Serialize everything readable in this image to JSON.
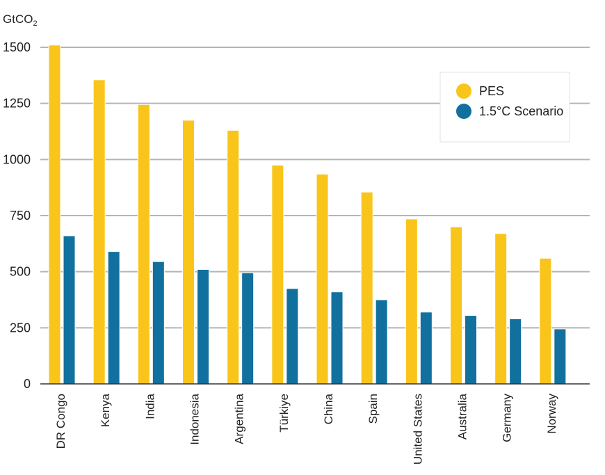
{
  "chart_data": {
    "type": "bar",
    "ylabel_main": "GtCO",
    "ylabel_sub": "2",
    "ylim": [
      0,
      1500
    ],
    "yticks": [
      0,
      250,
      500,
      750,
      1000,
      1250,
      1500
    ],
    "grid": true,
    "legend_position": "top-right",
    "categories": [
      "DR Congo",
      "Kenya",
      "India",
      "Indonesia",
      "Argentina",
      "Türkiye",
      "China",
      "Spain",
      "United States",
      "Australia",
      "Germany",
      "Norway"
    ],
    "series": [
      {
        "name": "PES",
        "color": "#F9C51B",
        "values": [
          1510,
          1355,
          1245,
          1175,
          1130,
          975,
          935,
          855,
          735,
          700,
          670,
          560
        ]
      },
      {
        "name": "1.5°C Scenario",
        "color": "#11709E",
        "values": [
          660,
          590,
          545,
          510,
          495,
          425,
          410,
          375,
          320,
          305,
          290,
          245
        ]
      }
    ]
  }
}
